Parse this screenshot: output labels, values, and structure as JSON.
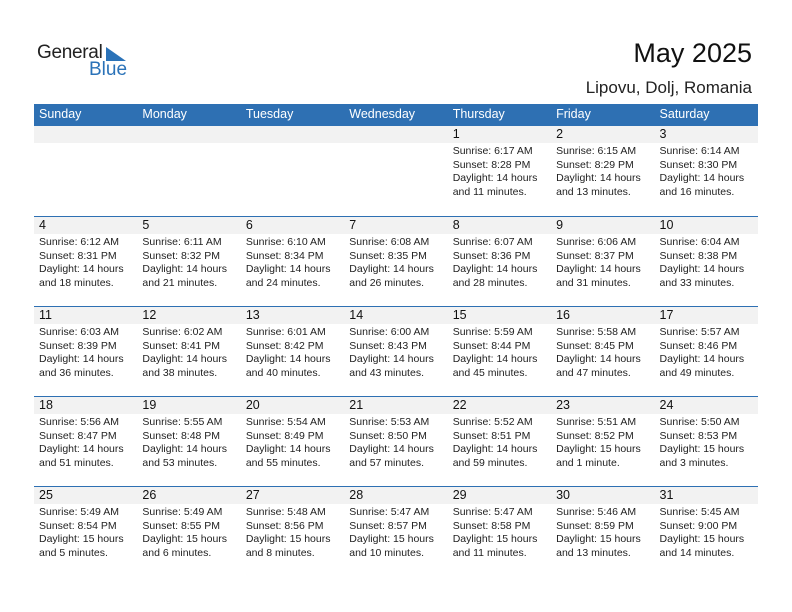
{
  "logo": {
    "text1": "General",
    "text2": "Blue"
  },
  "title": "May 2025",
  "location": "Lipovu, Dolj, Romania",
  "colors": {
    "header": "#2e70b3",
    "date_strip": "#f2f2f2",
    "brand": "#2a72b8"
  },
  "weekdays": [
    "Sunday",
    "Monday",
    "Tuesday",
    "Wednesday",
    "Thursday",
    "Friday",
    "Saturday"
  ],
  "weeks": [
    [
      null,
      null,
      null,
      null,
      {
        "day": "1",
        "sunrise": "Sunrise: 6:17 AM",
        "sunset": "Sunset: 8:28 PM",
        "daylight1": "Daylight: 14 hours",
        "daylight2": "and 11 minutes."
      },
      {
        "day": "2",
        "sunrise": "Sunrise: 6:15 AM",
        "sunset": "Sunset: 8:29 PM",
        "daylight1": "Daylight: 14 hours",
        "daylight2": "and 13 minutes."
      },
      {
        "day": "3",
        "sunrise": "Sunrise: 6:14 AM",
        "sunset": "Sunset: 8:30 PM",
        "daylight1": "Daylight: 14 hours",
        "daylight2": "and 16 minutes."
      }
    ],
    [
      {
        "day": "4",
        "sunrise": "Sunrise: 6:12 AM",
        "sunset": "Sunset: 8:31 PM",
        "daylight1": "Daylight: 14 hours",
        "daylight2": "and 18 minutes."
      },
      {
        "day": "5",
        "sunrise": "Sunrise: 6:11 AM",
        "sunset": "Sunset: 8:32 PM",
        "daylight1": "Daylight: 14 hours",
        "daylight2": "and 21 minutes."
      },
      {
        "day": "6",
        "sunrise": "Sunrise: 6:10 AM",
        "sunset": "Sunset: 8:34 PM",
        "daylight1": "Daylight: 14 hours",
        "daylight2": "and 24 minutes."
      },
      {
        "day": "7",
        "sunrise": "Sunrise: 6:08 AM",
        "sunset": "Sunset: 8:35 PM",
        "daylight1": "Daylight: 14 hours",
        "daylight2": "and 26 minutes."
      },
      {
        "day": "8",
        "sunrise": "Sunrise: 6:07 AM",
        "sunset": "Sunset: 8:36 PM",
        "daylight1": "Daylight: 14 hours",
        "daylight2": "and 28 minutes."
      },
      {
        "day": "9",
        "sunrise": "Sunrise: 6:06 AM",
        "sunset": "Sunset: 8:37 PM",
        "daylight1": "Daylight: 14 hours",
        "daylight2": "and 31 minutes."
      },
      {
        "day": "10",
        "sunrise": "Sunrise: 6:04 AM",
        "sunset": "Sunset: 8:38 PM",
        "daylight1": "Daylight: 14 hours",
        "daylight2": "and 33 minutes."
      }
    ],
    [
      {
        "day": "11",
        "sunrise": "Sunrise: 6:03 AM",
        "sunset": "Sunset: 8:39 PM",
        "daylight1": "Daylight: 14 hours",
        "daylight2": "and 36 minutes."
      },
      {
        "day": "12",
        "sunrise": "Sunrise: 6:02 AM",
        "sunset": "Sunset: 8:41 PM",
        "daylight1": "Daylight: 14 hours",
        "daylight2": "and 38 minutes."
      },
      {
        "day": "13",
        "sunrise": "Sunrise: 6:01 AM",
        "sunset": "Sunset: 8:42 PM",
        "daylight1": "Daylight: 14 hours",
        "daylight2": "and 40 minutes."
      },
      {
        "day": "14",
        "sunrise": "Sunrise: 6:00 AM",
        "sunset": "Sunset: 8:43 PM",
        "daylight1": "Daylight: 14 hours",
        "daylight2": "and 43 minutes."
      },
      {
        "day": "15",
        "sunrise": "Sunrise: 5:59 AM",
        "sunset": "Sunset: 8:44 PM",
        "daylight1": "Daylight: 14 hours",
        "daylight2": "and 45 minutes."
      },
      {
        "day": "16",
        "sunrise": "Sunrise: 5:58 AM",
        "sunset": "Sunset: 8:45 PM",
        "daylight1": "Daylight: 14 hours",
        "daylight2": "and 47 minutes."
      },
      {
        "day": "17",
        "sunrise": "Sunrise: 5:57 AM",
        "sunset": "Sunset: 8:46 PM",
        "daylight1": "Daylight: 14 hours",
        "daylight2": "and 49 minutes."
      }
    ],
    [
      {
        "day": "18",
        "sunrise": "Sunrise: 5:56 AM",
        "sunset": "Sunset: 8:47 PM",
        "daylight1": "Daylight: 14 hours",
        "daylight2": "and 51 minutes."
      },
      {
        "day": "19",
        "sunrise": "Sunrise: 5:55 AM",
        "sunset": "Sunset: 8:48 PM",
        "daylight1": "Daylight: 14 hours",
        "daylight2": "and 53 minutes."
      },
      {
        "day": "20",
        "sunrise": "Sunrise: 5:54 AM",
        "sunset": "Sunset: 8:49 PM",
        "daylight1": "Daylight: 14 hours",
        "daylight2": "and 55 minutes."
      },
      {
        "day": "21",
        "sunrise": "Sunrise: 5:53 AM",
        "sunset": "Sunset: 8:50 PM",
        "daylight1": "Daylight: 14 hours",
        "daylight2": "and 57 minutes."
      },
      {
        "day": "22",
        "sunrise": "Sunrise: 5:52 AM",
        "sunset": "Sunset: 8:51 PM",
        "daylight1": "Daylight: 14 hours",
        "daylight2": "and 59 minutes."
      },
      {
        "day": "23",
        "sunrise": "Sunrise: 5:51 AM",
        "sunset": "Sunset: 8:52 PM",
        "daylight1": "Daylight: 15 hours",
        "daylight2": "and 1 minute."
      },
      {
        "day": "24",
        "sunrise": "Sunrise: 5:50 AM",
        "sunset": "Sunset: 8:53 PM",
        "daylight1": "Daylight: 15 hours",
        "daylight2": "and 3 minutes."
      }
    ],
    [
      {
        "day": "25",
        "sunrise": "Sunrise: 5:49 AM",
        "sunset": "Sunset: 8:54 PM",
        "daylight1": "Daylight: 15 hours",
        "daylight2": "and 5 minutes."
      },
      {
        "day": "26",
        "sunrise": "Sunrise: 5:49 AM",
        "sunset": "Sunset: 8:55 PM",
        "daylight1": "Daylight: 15 hours",
        "daylight2": "and 6 minutes."
      },
      {
        "day": "27",
        "sunrise": "Sunrise: 5:48 AM",
        "sunset": "Sunset: 8:56 PM",
        "daylight1": "Daylight: 15 hours",
        "daylight2": "and 8 minutes."
      },
      {
        "day": "28",
        "sunrise": "Sunrise: 5:47 AM",
        "sunset": "Sunset: 8:57 PM",
        "daylight1": "Daylight: 15 hours",
        "daylight2": "and 10 minutes."
      },
      {
        "day": "29",
        "sunrise": "Sunrise: 5:47 AM",
        "sunset": "Sunset: 8:58 PM",
        "daylight1": "Daylight: 15 hours",
        "daylight2": "and 11 minutes."
      },
      {
        "day": "30",
        "sunrise": "Sunrise: 5:46 AM",
        "sunset": "Sunset: 8:59 PM",
        "daylight1": "Daylight: 15 hours",
        "daylight2": "and 13 minutes."
      },
      {
        "day": "31",
        "sunrise": "Sunrise: 5:45 AM",
        "sunset": "Sunset: 9:00 PM",
        "daylight1": "Daylight: 15 hours",
        "daylight2": "and 14 minutes."
      }
    ]
  ]
}
